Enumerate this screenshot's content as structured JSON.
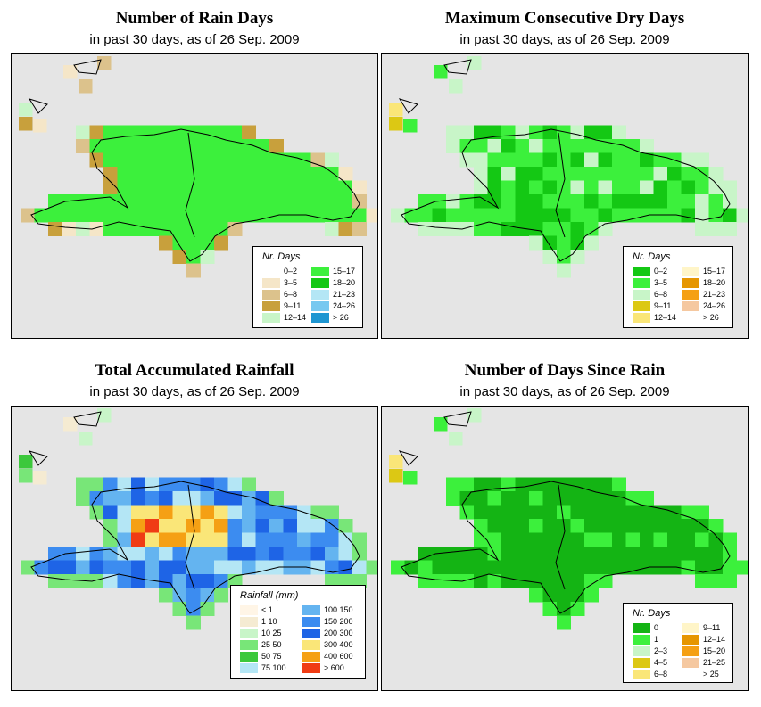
{
  "panels": [
    {
      "title": "Number of Rain Days",
      "subtitle": "in past 30 days, as of  26 Sep. 2009",
      "legend_title": "Nr. Days",
      "legend": [
        {
          "label": "0–2",
          "color": "#ffffff"
        },
        {
          "label": "3–5",
          "color": "#f5e6c8"
        },
        {
          "label": "6–8",
          "color": "#dcc28c"
        },
        {
          "label": "9–11",
          "color": "#c8a03c"
        },
        {
          "label": "12–14",
          "color": "#c8f5c8"
        },
        {
          "label": "15–17",
          "color": "#3cf03c"
        },
        {
          "label": "18–20",
          "color": "#14c814"
        },
        {
          "label": "21–23",
          "color": "#b4e6f5"
        },
        {
          "label": "24–26",
          "color": "#78c8f0"
        },
        {
          "label": "> 26",
          "color": "#1e96d2"
        }
      ]
    },
    {
      "title": "Maximum Consecutive Dry Days",
      "subtitle": "in past 30 days, as of  26 Sep. 2009",
      "legend_title": "Nr. Days",
      "legend": [
        {
          "label": "0–2",
          "color": "#14c814"
        },
        {
          "label": "3–5",
          "color": "#3cf03c"
        },
        {
          "label": "6–8",
          "color": "#c8f5c8"
        },
        {
          "label": "9–11",
          "color": "#dcc814"
        },
        {
          "label": "12–14",
          "color": "#fae678"
        },
        {
          "label": "15–17",
          "color": "#fff5c8"
        },
        {
          "label": "18–20",
          "color": "#e69600"
        },
        {
          "label": "21–23",
          "color": "#f5a014"
        },
        {
          "label": "24–26",
          "color": "#f5c8a0"
        },
        {
          "label": "> 26",
          "color": "#ffffff"
        }
      ]
    },
    {
      "title": "Total Accumulated Rainfall",
      "subtitle": "in past 30 days, as of  26 Sep. 2009",
      "legend_title": "Rainfall (mm)",
      "legend": [
        {
          "label": "< 1",
          "color": "#fff5e6"
        },
        {
          "label": "1   10",
          "color": "#f5ebd2"
        },
        {
          "label": "10   25",
          "color": "#c8f5c8"
        },
        {
          "label": "25   50",
          "color": "#78e678"
        },
        {
          "label": "50   75",
          "color": "#3cc83c"
        },
        {
          "label": "75   100",
          "color": "#b4e6f5"
        },
        {
          "label": "100   150",
          "color": "#64b4f0"
        },
        {
          "label": "150   200",
          "color": "#3c8cf0"
        },
        {
          "label": "200   300",
          "color": "#1e64e6"
        },
        {
          "label": "300   400",
          "color": "#fae678"
        },
        {
          "label": "400   600",
          "color": "#f5a014"
        },
        {
          "label": "> 600",
          "color": "#f03c14"
        }
      ]
    },
    {
      "title": "Number of Days Since Rain",
      "subtitle": "in past 30 days, as of  26 Sep. 2009",
      "legend_title": "Nr. Days",
      "legend": [
        {
          "label": "0",
          "color": "#14b414"
        },
        {
          "label": "1",
          "color": "#3cf03c"
        },
        {
          "label": "2–3",
          "color": "#c8f5c8"
        },
        {
          "label": "4–5",
          "color": "#dcc814"
        },
        {
          "label": "6–8",
          "color": "#fae678"
        },
        {
          "label": "9–11",
          "color": "#fff5c8"
        },
        {
          "label": "12–14",
          "color": "#e69600"
        },
        {
          "label": "15–20",
          "color": "#f5a014"
        },
        {
          "label": "21–25",
          "color": "#f5c8a0"
        },
        {
          "label": "> 25",
          "color": "#ffffff"
        }
      ]
    }
  ]
}
